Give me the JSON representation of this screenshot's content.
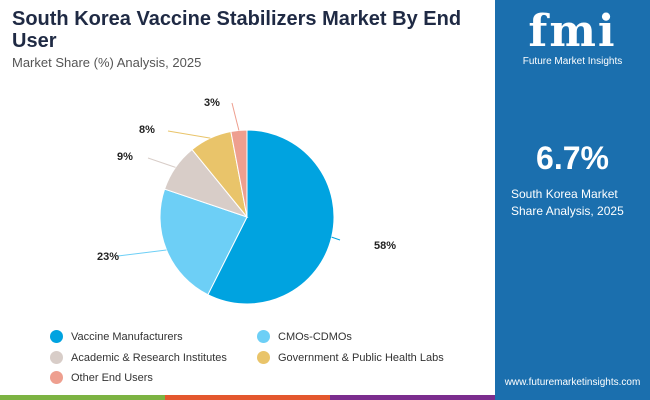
{
  "header": {
    "title": "South Korea Vaccine Stabilizers Market By End User",
    "subtitle": "Market Share (%) Analysis, 2025"
  },
  "side": {
    "logo_text": "fmi",
    "logo_caption": "Future Market Insights",
    "stat": "6.7%",
    "stat_label": "South Korea Market Share Analysis, 2025",
    "url": "www.futuremarketinsights.com"
  },
  "chart_data": {
    "type": "pie",
    "title": "South Korea Vaccine Stabilizers Market By End User",
    "categories": [
      "Vaccine Manufacturers",
      "CMOs-CDMOs",
      "Academic & Research Institutes",
      "Government & Public Health Labs",
      "Other End Users"
    ],
    "values": [
      58,
      23,
      9,
      8,
      3
    ],
    "labels": [
      "58%",
      "23%",
      "9%",
      "8%",
      "3%"
    ],
    "colors": [
      "#00a3e0",
      "#6dcff6",
      "#d8cdc8",
      "#e9c46a",
      "#ee9f8f"
    ],
    "legend": "bottom"
  }
}
